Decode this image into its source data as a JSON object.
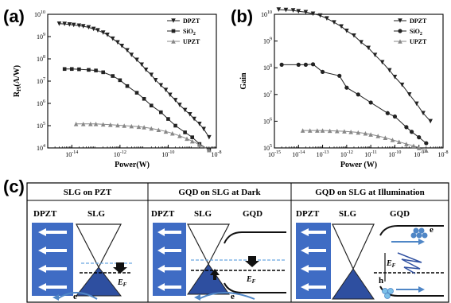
{
  "panels": {
    "a": {
      "letter": "(a)"
    },
    "b": {
      "letter": "(b)"
    },
    "c": {
      "letter": "(c)"
    }
  },
  "chart_data": [
    {
      "id": "a",
      "type": "scatter",
      "title": "",
      "xlabel": "Power(W)",
      "ylabel": "R",
      "ylabel_sub": "Pl",
      "ylabel_unit": "(A/W)",
      "xscale": "log",
      "yscale": "log",
      "xlim": [
        1e-15,
        1e-08
      ],
      "ylim": [
        10000.0,
        10000000000.0
      ],
      "xticks": [
        {
          "value": 1e-14,
          "base": "10",
          "exp": "-14"
        },
        {
          "value": 1e-12,
          "base": "10",
          "exp": "-12"
        },
        {
          "value": 1e-10,
          "base": "10",
          "exp": "-10"
        },
        {
          "value": 1e-08,
          "base": "10",
          "exp": "-8"
        }
      ],
      "yticks": [
        {
          "value": 10000.0,
          "base": "10",
          "exp": "4"
        },
        {
          "value": 100000.0,
          "base": "10",
          "exp": "5"
        },
        {
          "value": 1000000.0,
          "base": "10",
          "exp": "6"
        },
        {
          "value": 10000000.0,
          "base": "10",
          "exp": "7"
        },
        {
          "value": 100000000.0,
          "base": "10",
          "exp": "8"
        },
        {
          "value": 1000000000.0,
          "base": "10",
          "exp": "9"
        },
        {
          "value": 10000000000.0,
          "base": "10",
          "exp": "10"
        }
      ],
      "legend_position": "top-right",
      "series": [
        {
          "name": "DPZT",
          "marker": "triangle-down",
          "color": "#222222",
          "x": [
            3e-15,
            5e-15,
            8e-15,
            1.2e-14,
            2e-14,
            3e-14,
            5e-14,
            8e-14,
            1.2e-13,
            2e-13,
            3e-13,
            5e-13,
            8e-13,
            1.2e-12,
            2e-12,
            3e-12,
            5e-12,
            8e-12,
            1.2e-11,
            2e-11,
            3e-11,
            5e-11,
            8e-11,
            1.2e-10,
            2e-10,
            3e-10,
            5e-10,
            8e-10,
            1.2e-09,
            2e-09,
            3e-09,
            5e-09
          ],
          "y": [
            3800000000.0,
            3700000000.0,
            3500000000.0,
            3300000000.0,
            3100000000.0,
            2900000000.0,
            2600000000.0,
            2200000000.0,
            1900000000.0,
            1500000000.0,
            1200000000.0,
            800000000.0,
            550000000.0,
            380000000.0,
            240000000.0,
            150000000.0,
            90000000.0,
            55000000.0,
            32000000.0,
            19000000.0,
            11000000.0,
            6500000.0,
            4000000.0,
            2400000.0,
            1400000.0,
            850000.0,
            500000.0,
            320000.0,
            200000.0,
            120000.0,
            70000.0,
            30000.0
          ]
        },
        {
          "name": "SiO2",
          "marker": "square",
          "color": "#222222",
          "x": [
            5e-15,
            1e-14,
            2e-14,
            5e-14,
            1e-13,
            2e-13,
            5e-13,
            1e-12,
            2e-12,
            5e-12,
            1e-11,
            2e-11,
            5e-11,
            1e-10,
            2e-10,
            5e-10,
            1e-09,
            2e-09,
            5e-09
          ],
          "y": [
            35000000.0,
            35000000.0,
            34000000.0,
            32000000.0,
            30000000.0,
            25000000.0,
            17000000.0,
            11000000.0,
            6000000.0,
            3000000.0,
            1600000.0,
            800000.0,
            400000.0,
            200000.0,
            100000.0,
            50000.0,
            30000.0,
            15000.0,
            8000.0
          ]
        },
        {
          "name": "UPZT",
          "marker": "triangle-up",
          "color": "#888888",
          "x": [
            1.5e-14,
            3e-14,
            6e-14,
            1e-13,
            2e-13,
            4e-13,
            8e-13,
            1.5e-12,
            3e-12,
            6e-12,
            1e-11,
            2e-11,
            4e-11,
            8e-11,
            1.5e-10,
            3e-10,
            6e-10,
            1e-09,
            2e-09,
            5e-09
          ],
          "y": [
            120000.0,
            120000.0,
            120000.0,
            120000.0,
            115000.0,
            110000.0,
            105000.0,
            100000.0,
            95000.0,
            90000.0,
            85000.0,
            75000.0,
            65000.0,
            55000.0,
            45000.0,
            35000.0,
            26000.0,
            20000.0,
            14000.0,
            8000.0
          ]
        }
      ]
    },
    {
      "id": "b",
      "type": "scatter",
      "title": "",
      "xlabel": "Power (W)",
      "ylabel": "Gain",
      "xscale": "log",
      "yscale": "log",
      "xlim": [
        1e-15,
        1e-08
      ],
      "ylim": [
        100000.0,
        10000000000.0
      ],
      "xticks": [
        {
          "value": 1e-15,
          "base": "10",
          "exp": "-15"
        },
        {
          "value": 1e-14,
          "base": "10",
          "exp": "-14"
        },
        {
          "value": 1e-13,
          "base": "10",
          "exp": "-13"
        },
        {
          "value": 1e-12,
          "base": "10",
          "exp": "-12"
        },
        {
          "value": 1e-11,
          "base": "10",
          "exp": "-11"
        },
        {
          "value": 1e-10,
          "base": "10",
          "exp": "-10"
        },
        {
          "value": 1e-09,
          "base": "10",
          "exp": "-9"
        },
        {
          "value": 1e-08,
          "base": "10",
          "exp": "-8"
        }
      ],
      "yticks": [
        {
          "value": 100000.0,
          "base": "10",
          "exp": "5"
        },
        {
          "value": 1000000.0,
          "base": "10",
          "exp": "6"
        },
        {
          "value": 10000000.0,
          "base": "10",
          "exp": "7"
        },
        {
          "value": 100000000.0,
          "base": "10",
          "exp": "8"
        },
        {
          "value": 1000000000.0,
          "base": "10",
          "exp": "9"
        },
        {
          "value": 10000000000.0,
          "base": "10",
          "exp": "10"
        }
      ],
      "legend_position": "top-right",
      "series": [
        {
          "name": "DPZT",
          "marker": "triangle-down",
          "color": "#222222",
          "x": [
            1.5e-15,
            3e-15,
            6e-15,
            1e-14,
            2e-14,
            4e-14,
            8e-14,
            1.5e-13,
            3e-13,
            6e-13,
            1e-12,
            2e-12,
            4e-12,
            8e-12,
            1.5e-11,
            3e-11,
            6e-11,
            1e-10,
            2e-10,
            4e-10,
            8e-10,
            1.5e-09,
            3e-09
          ],
          "y": [
            15000000000.0,
            14500000000.0,
            14000000000.0,
            13000000000.0,
            12000000000.0,
            10500000000.0,
            9000000000.0,
            7000000000.0,
            5000000000.0,
            3500000000.0,
            2400000000.0,
            1600000000.0,
            900000000.0,
            550000000.0,
            300000000.0,
            160000000.0,
            80000000.0,
            45000000.0,
            23000000.0,
            10000000.0,
            4500000.0,
            2000000.0,
            1000000.0
          ]
        },
        {
          "name": "SiO2",
          "marker": "circle",
          "color": "#222222",
          "x": [
            2e-15,
            1e-14,
            2e-14,
            4e-14,
            1e-13,
            5e-13,
            1e-12,
            3e-12,
            1e-11,
            5e-11,
            1e-10,
            3e-10,
            5e-10,
            1e-09,
            2e-09
          ],
          "y": [
            130000000.0,
            130000000.0,
            130000000.0,
            135000000.0,
            70000000.0,
            50000000.0,
            18000000.0,
            10000000.0,
            5000000.0,
            2000000.0,
            1500000.0,
            600000.0,
            400000.0,
            250000.0,
            150000.0
          ]
        },
        {
          "name": "UPZT",
          "marker": "triangle-up",
          "color": "#888888",
          "x": [
            1.5e-14,
            3e-14,
            6e-14,
            1e-13,
            2e-13,
            4e-13,
            8e-13,
            1.5e-12,
            3e-12,
            6e-12,
            1e-11,
            2e-11,
            4e-11,
            8e-11,
            1.5e-10,
            3e-10,
            6e-10,
            1e-09,
            2e-09
          ],
          "y": [
            450000.0,
            450000.0,
            450000.0,
            450000.0,
            440000.0,
            430000.0,
            420000.0,
            400000.0,
            380000.0,
            350000.0,
            320000.0,
            280000.0,
            240000.0,
            200000.0,
            170000.0,
            140000.0,
            120000.0,
            100000.0,
            80000.0
          ]
        }
      ]
    }
  ],
  "legend": {
    "dpzt": "DPZT",
    "sio2_main": "SiO",
    "sio2_sub": "2",
    "upzt": "UPZT"
  },
  "diagram": {
    "panels": [
      {
        "title": "SLG on PZT",
        "label_left": "DPZT",
        "label_mid": "SLG",
        "ef_main": "E",
        "ef_sub": "F",
        "carrier": "e"
      },
      {
        "title": "GQD on SLG at Dark",
        "label_left": "DPZT",
        "label_mid": "SLG",
        "label_right": "GQD",
        "ef_main": "E",
        "ef_sub": "F",
        "carrier": "e"
      },
      {
        "title": "GQD on SLG at Illumination",
        "label_left": "DPZT",
        "label_mid": "SLG",
        "label_right": "GQD",
        "ef_main": "E",
        "ef_sub": "F",
        "carrier_e": "e",
        "carrier_h": "h"
      }
    ],
    "colors": {
      "pzt": "#3f6cc4",
      "cone": "#2e4fa0",
      "light_line": "#6aa6e0",
      "arrow": "#4f86c6",
      "hole": "#7cc0e8"
    }
  }
}
